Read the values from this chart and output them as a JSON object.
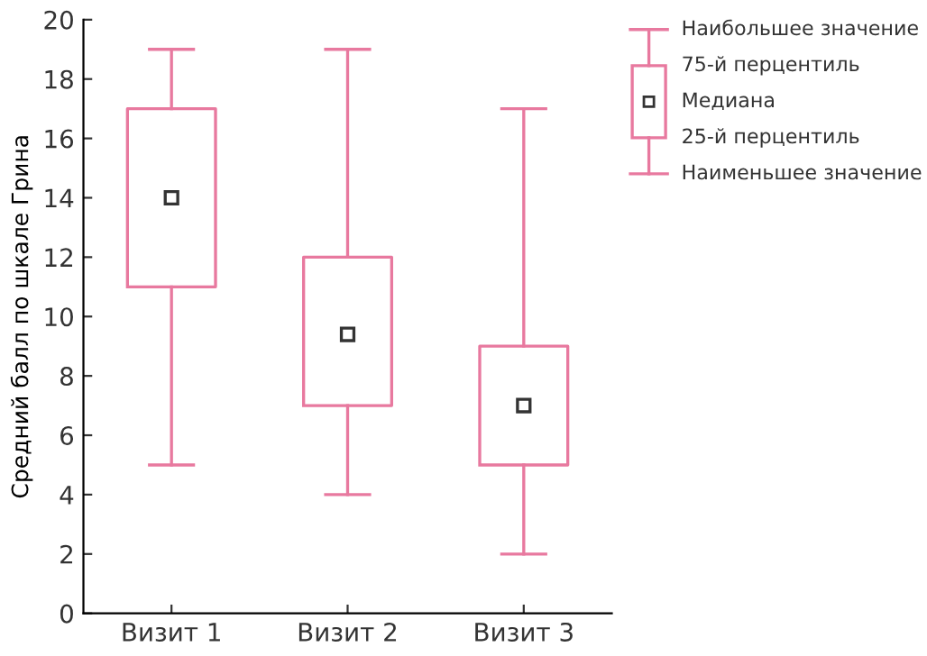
{
  "chart_data": {
    "type": "box",
    "ylabel": "Средний балл по шкале Грина",
    "categories": [
      "Визит 1",
      "Визит 2",
      "Визит 3"
    ],
    "boxes": [
      {
        "low": 5,
        "q1": 11,
        "median": 14,
        "q3": 17,
        "high": 19
      },
      {
        "low": 4,
        "q1": 7,
        "median": 9.4,
        "q3": 12,
        "high": 19
      },
      {
        "low": 2,
        "q1": 5,
        "median": 7,
        "q3": 9,
        "high": 17
      }
    ],
    "color": "#e8799f",
    "ylim": [
      0,
      20
    ],
    "yticks": [
      0,
      2,
      4,
      6,
      8,
      10,
      12,
      14,
      16,
      18,
      20
    ],
    "grid": false,
    "marker": "square",
    "annotations": [
      "Наибольшее значение",
      "75-й перцентиль",
      "Медиана",
      "25-й перцентиль",
      "Наименьшее значение"
    ]
  }
}
